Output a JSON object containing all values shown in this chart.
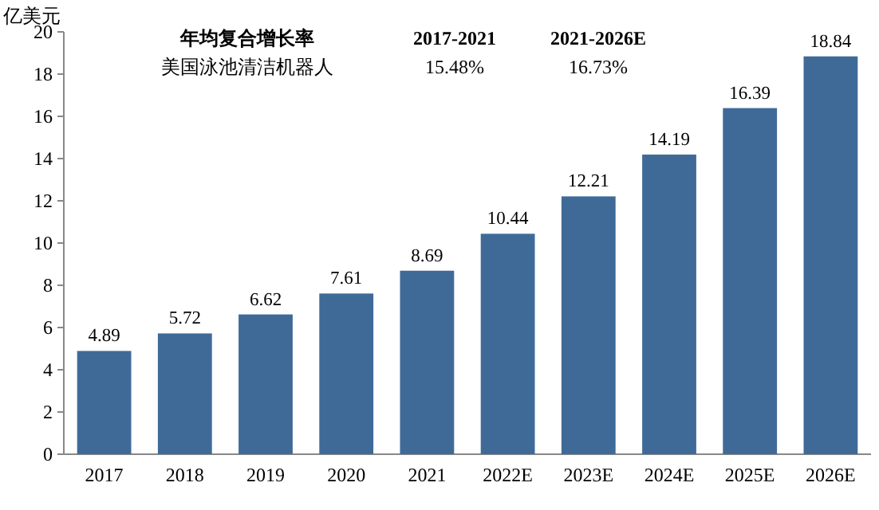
{
  "chart_data": {
    "type": "bar",
    "ylabel": "亿美元",
    "categories": [
      "2017",
      "2018",
      "2019",
      "2020",
      "2021",
      "2022E",
      "2023E",
      "2024E",
      "2025E",
      "2026E"
    ],
    "values": [
      4.89,
      5.72,
      6.62,
      7.61,
      8.69,
      10.44,
      12.21,
      14.19,
      16.39,
      18.84
    ],
    "color": "#3f6a98",
    "ylim": [
      0,
      20
    ],
    "yticks": [
      0,
      2,
      4,
      6,
      8,
      10,
      12,
      14,
      16,
      18,
      20
    ],
    "data_labels": true,
    "grid": false,
    "annotations": [
      "年均复合增长率",
      "2017-2021",
      "2021-2026E",
      "美国泳池清洁机器人",
      "15.48%",
      "16.73%"
    ]
  }
}
